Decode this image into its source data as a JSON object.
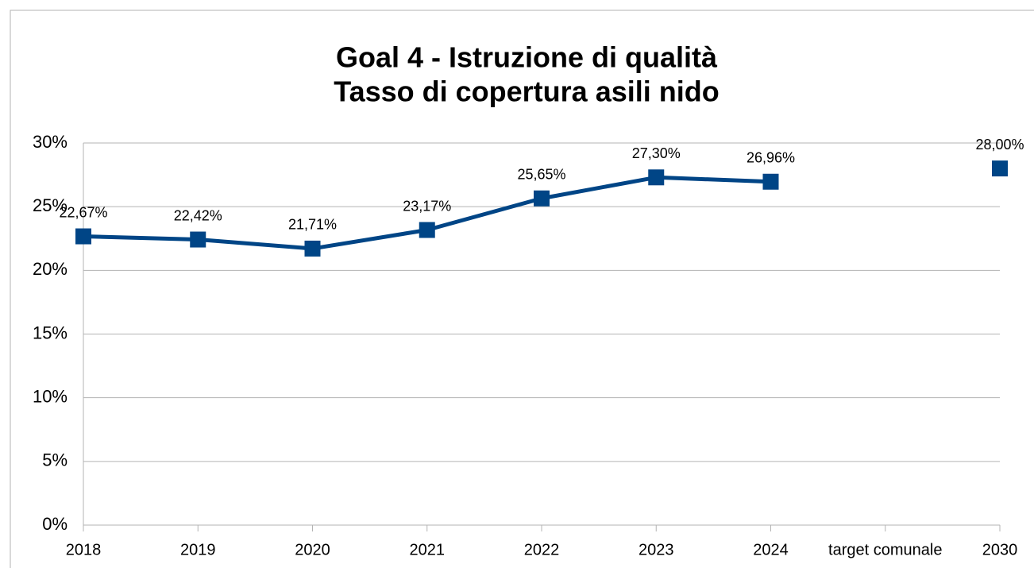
{
  "chart_data": {
    "type": "line",
    "title": "Goal 4 - Istruzione di qualità",
    "subtitle": "Tasso di copertura asili nido",
    "categories": [
      "2018",
      "2019",
      "2020",
      "2021",
      "2022",
      "2023",
      "2024",
      "target comunale",
      "2030"
    ],
    "series": [
      {
        "name": "Tasso di copertura asili nido",
        "color": "#004586",
        "values": [
          22.67,
          22.42,
          21.71,
          23.17,
          25.65,
          27.3,
          26.96,
          null,
          28.0
        ],
        "value_labels": [
          "22,67%",
          "22,42%",
          "21,71%",
          "23,17%",
          "25,65%",
          "27,30%",
          "26,96%",
          null,
          "28,00%"
        ]
      }
    ],
    "ylim": [
      0,
      30
    ],
    "yticks": [
      {
        "value": 0,
        "label": "0%"
      },
      {
        "value": 5,
        "label": "5%"
      },
      {
        "value": 10,
        "label": "10%"
      },
      {
        "value": 15,
        "label": "15%"
      },
      {
        "value": 20,
        "label": "20%"
      },
      {
        "value": 25,
        "label": "25%"
      },
      {
        "value": 30,
        "label": "30%"
      }
    ],
    "grid": true
  }
}
